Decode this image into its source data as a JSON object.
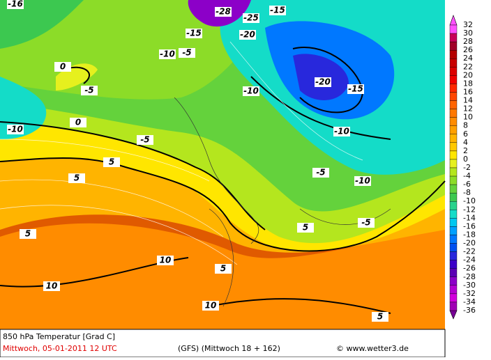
{
  "legend": {
    "values": [
      32,
      30,
      28,
      26,
      24,
      22,
      20,
      18,
      16,
      14,
      12,
      10,
      8,
      6,
      4,
      2,
      0,
      -2,
      -4,
      -6,
      -8,
      -10,
      -12,
      -14,
      -16,
      -18,
      -20,
      -22,
      -24,
      -26,
      -28,
      -30,
      -32,
      -34,
      -36
    ],
    "colors": [
      "#ff50ff",
      "#c8005a",
      "#a00028",
      "#b40000",
      "#c80000",
      "#dc0000",
      "#f00000",
      "#ff2800",
      "#ff4600",
      "#ff6400",
      "#ff7800",
      "#ff8c00",
      "#ffa000",
      "#ffb400",
      "#ffc800",
      "#ffe600",
      "#e6f01e",
      "#b4e61e",
      "#8cdc28",
      "#64d23c",
      "#3cc850",
      "#28d28c",
      "#14dcc8",
      "#00c8f0",
      "#00a0ff",
      "#0078ff",
      "#0050f0",
      "#2828dc",
      "#3c00c8",
      "#5a00b4",
      "#8c00c8",
      "#b400d2",
      "#d200dc",
      "#a000b4",
      "#780096"
    ]
  },
  "contour_labels": [
    -16,
    -28,
    -25,
    -15,
    -20,
    -15,
    -10,
    -5,
    0,
    -5,
    -20,
    -15,
    -10,
    -10,
    -10,
    -5,
    -5,
    -10,
    5,
    0,
    5,
    10,
    10,
    10,
    5,
    5,
    5,
    -5,
    5
  ],
  "footer": {
    "title": "850 hPa Temperatur [Grad C]",
    "date": "Mittwoch, 05-01-2011  12 UTC",
    "model": "(GFS)  (Mittwoch 18 + 162)",
    "credit": "© www.wetter3.de"
  }
}
